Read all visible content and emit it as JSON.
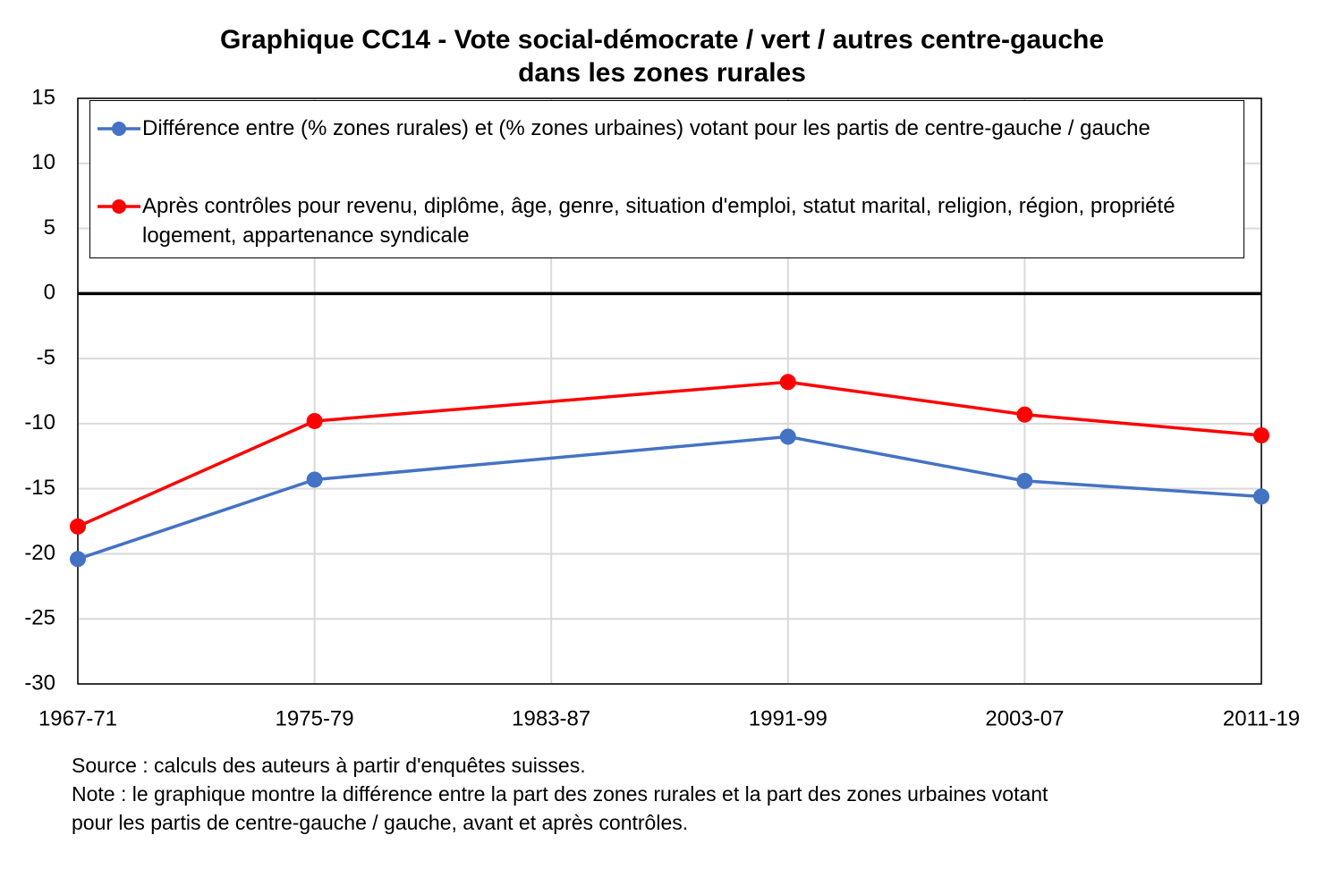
{
  "chart_data": {
    "type": "line",
    "title": [
      "Graphique CC14 - Vote social-démocrate / vert / autres centre-gauche",
      "dans les zones rurales"
    ],
    "categories": [
      "1967-71",
      "1975-79",
      "1983-87",
      "1991-99",
      "2003-07",
      "2011-19"
    ],
    "series": [
      {
        "name": "Différence entre (% zones rurales) et (% zones urbaines) votant pour les partis de centre-gauche / gauche",
        "color": "#4472c4",
        "values": [
          -20.4,
          -14.3,
          null,
          -11.0,
          -14.4,
          -15.6
        ]
      },
      {
        "name": "Après contrôles pour revenu, diplôme, âge, genre, situation d'emploi, statut marital, religion, région, propriété logement, appartenance syndicale",
        "color": "#ff0000",
        "values": [
          -17.9,
          -9.8,
          null,
          -6.8,
          -9.3,
          -10.9
        ]
      }
    ],
    "ylim": [
      -30,
      15
    ],
    "yticks": [
      -30,
      -25,
      -20,
      -15,
      -10,
      -5,
      0,
      5,
      10,
      15
    ],
    "grid": true,
    "legend": "top",
    "notes": [
      "Source : calculs des auteurs à partir d'enquêtes suisses.",
      "Note : le graphique montre la différence entre la part des zones rurales et la part des zones urbaines votant",
      "pour les partis de centre-gauche / gauche, avant et après contrôles."
    ]
  }
}
